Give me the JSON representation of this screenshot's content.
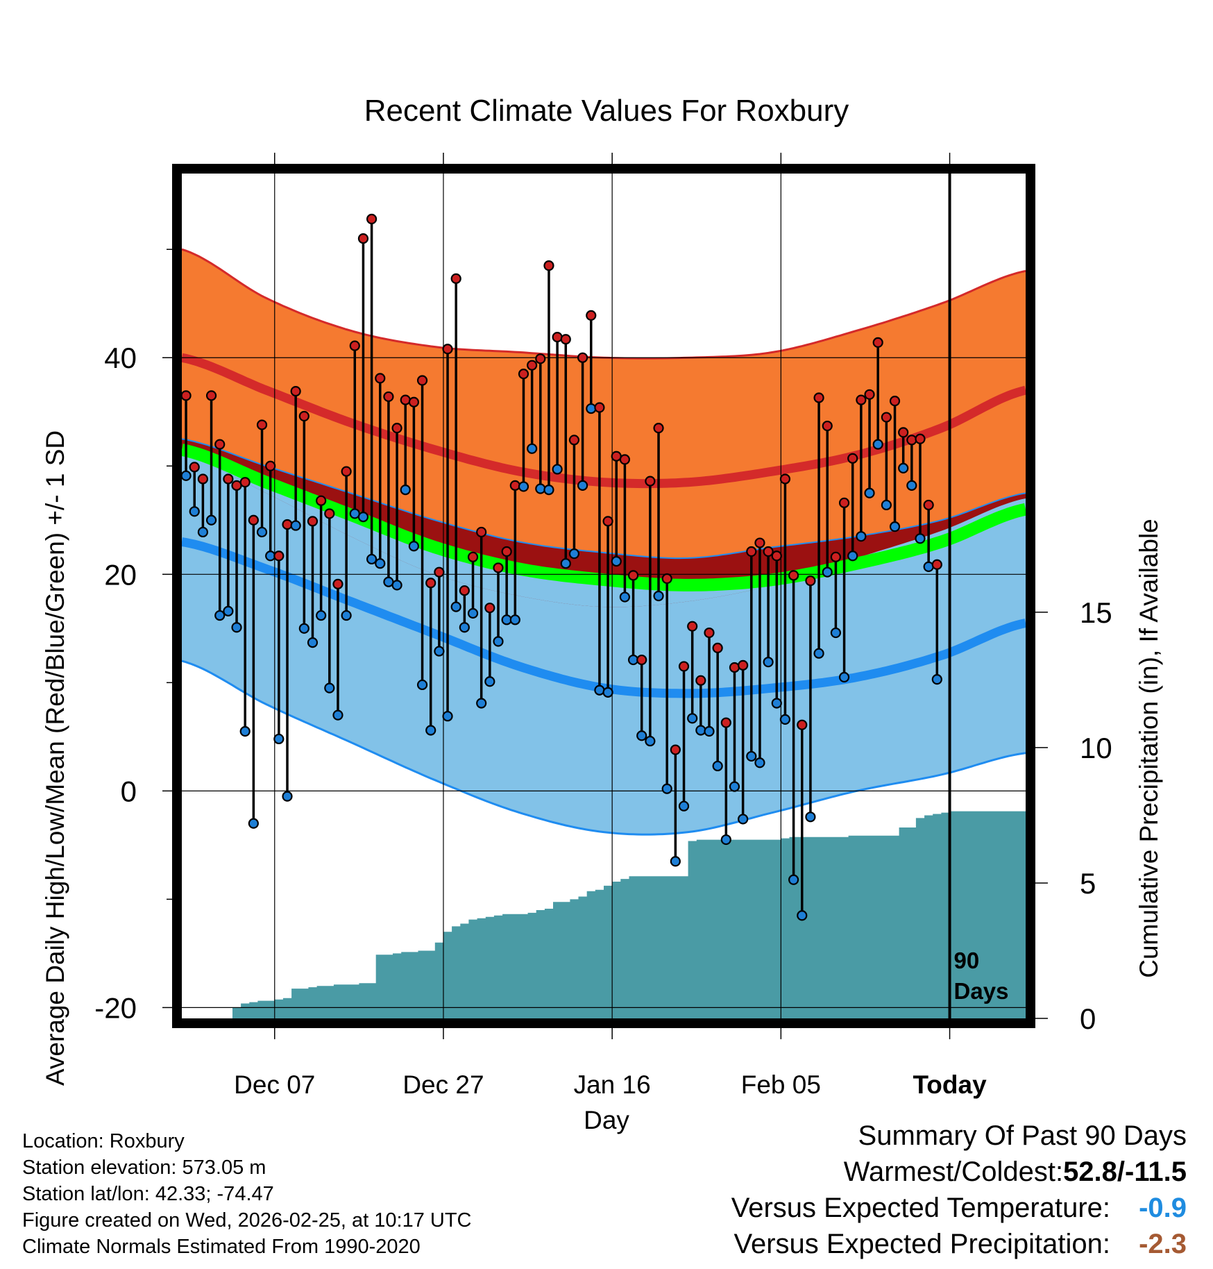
{
  "chart_data": {
    "type": "line",
    "title": "Recent Climate Values For Roxbury",
    "xlabel": "Day",
    "ylabel_left": "Average Daily High/Low/Mean (Red/Blue/Green) +/- 1 SD",
    "ylabel_right": "Cumulative Precipitation (in), If Available",
    "x_ticks": [
      "Dec 07",
      "Dec 27",
      "Jan 16",
      "Feb 05",
      "Today"
    ],
    "x_tick_days": [
      11,
      31,
      51,
      71,
      91
    ],
    "xlim": [
      0,
      100
    ],
    "ylim": [
      -21,
      57
    ],
    "y_ticks": [
      -20,
      0,
      20,
      40
    ],
    "precip_ticks": [
      0,
      5,
      10,
      15
    ],
    "precip_per_degree": 0.4,
    "today_day": 91,
    "today_label_line1": "90",
    "today_label_line2": "Days",
    "normals": {
      "days": [
        0,
        10,
        20,
        30,
        40,
        50,
        60,
        70,
        80,
        90,
        100
      ],
      "high_mean": [
        40,
        37,
        34,
        31.5,
        29.5,
        28.5,
        28.5,
        29.5,
        31,
        33.5,
        37
      ],
      "high_upper": [
        50,
        45.5,
        42.5,
        41,
        40.5,
        40,
        40,
        40.5,
        42.5,
        45,
        48
      ],
      "high_lower": [
        31,
        27.5,
        23.5,
        20,
        18,
        17,
        17.5,
        19,
        21.5,
        24,
        27
      ],
      "low_mean": [
        23,
        20.5,
        17.5,
        14.5,
        11.5,
        9.5,
        9,
        9.5,
        10.5,
        12.5,
        15.5
      ],
      "low_upper": [
        32.5,
        30,
        27.5,
        25,
        23,
        22,
        21.5,
        22.5,
        23.5,
        25,
        27.5
      ],
      "low_lower": [
        12,
        8,
        4.5,
        1,
        -2,
        -3.8,
        -3.8,
        -2,
        0,
        1.5,
        3.5
      ],
      "mean": [
        31.5,
        28.5,
        25.5,
        22.5,
        20.5,
        19.5,
        19,
        19.5,
        21,
        23,
        26
      ]
    },
    "series": [
      {
        "name": "Daily High",
        "color": "#cc2020",
        "values": [
          36.5,
          29.9,
          28.8,
          36.5,
          32,
          28.8,
          28.2,
          28.5,
          25,
          33.8,
          30,
          21.7,
          24.6,
          36.9,
          34.6,
          24.9,
          26.8,
          25.6,
          19.1,
          29.5,
          41.1,
          51,
          52.8,
          38.1,
          36.4,
          33.5,
          36.1,
          35.9,
          37.9,
          19.2,
          20.2,
          40.8,
          47.3,
          18.5,
          21.6,
          23.9,
          16.9,
          20.6,
          22.1,
          28.2,
          38.5,
          39.3,
          39.9,
          48.5,
          41.9,
          41.7,
          32.4,
          40,
          43.9,
          35.4,
          24.9,
          30.9,
          30.6,
          19.9,
          12.1,
          28.6,
          33.5,
          19.6,
          3.8,
          11.5,
          15.2,
          10.2,
          14.6,
          13.2,
          6.3,
          11.4,
          11.6,
          22.1,
          22.9,
          22.1,
          21.7,
          28.8,
          19.9,
          6.1,
          19.4,
          36.3,
          33.7,
          21.6,
          26.6,
          30.7,
          36.1,
          36.6,
          41.4,
          34.5,
          36,
          33.1,
          32.4,
          32.5,
          26.4,
          20.9
        ],
        "lows": [
          29.1,
          25.8,
          23.9,
          25,
          16.2,
          16.6,
          15.1,
          5.5,
          -3,
          23.9,
          21.7,
          4.8,
          -0.5,
          24.5,
          15,
          13.7,
          16.2,
          9.5,
          7,
          16.2,
          25.6,
          25.3,
          21.4,
          21,
          19.3,
          19,
          27.8,
          22.6,
          9.8,
          5.6,
          12.9,
          6.9,
          17,
          15.1,
          16.4,
          8.1,
          10.1,
          13.8,
          15.8,
          15.8,
          28.1,
          31.6,
          27.9,
          27.8,
          29.7,
          21,
          21.9,
          28.2,
          35.3,
          9.3,
          9.1,
          21.2,
          17.9,
          12.1,
          5.1,
          4.6,
          18,
          0.2,
          -6.5,
          -1.4,
          6.7,
          5.6,
          5.5,
          2.3,
          -4.5,
          0.4,
          -2.6,
          3.2,
          2.6,
          11.9,
          8.1,
          6.6,
          -8.2,
          -11.5,
          -2.4,
          12.7,
          20.2,
          14.6,
          10.5,
          21.7,
          23.5,
          27.5,
          32,
          26.4,
          24.4,
          29.8,
          28.2,
          23.3,
          20.7,
          10.3
        ]
      },
      {
        "name": "Cumulative Precipitation",
        "color": "#4a9ba5",
        "values": [
          0,
          0,
          0,
          0,
          0,
          0,
          0.4,
          0.55,
          0.6,
          0.65,
          0.65,
          0.7,
          0.75,
          1.1,
          1.1,
          1.15,
          1.2,
          1.2,
          1.25,
          1.25,
          1.25,
          1.3,
          1.3,
          2.35,
          2.35,
          2.4,
          2.45,
          2.45,
          2.5,
          2.5,
          2.8,
          3.2,
          3.4,
          3.5,
          3.65,
          3.7,
          3.75,
          3.8,
          3.85,
          3.85,
          3.85,
          3.9,
          4,
          4.05,
          4.3,
          4.3,
          4.4,
          4.5,
          4.7,
          4.75,
          4.9,
          5.05,
          5.15,
          5.25,
          5.25,
          5.25,
          5.25,
          5.25,
          5.25,
          5.25,
          6.55,
          6.6,
          6.6,
          6.6,
          6.6,
          6.6,
          6.6,
          6.6,
          6.6,
          6.6,
          6.6,
          6.65,
          6.7,
          6.7,
          6.7,
          6.7,
          6.7,
          6.7,
          6.7,
          6.75,
          6.75,
          6.75,
          6.75,
          6.75,
          6.75,
          7.05,
          7.05,
          7.4,
          7.5,
          7.55,
          7.6,
          7.65,
          7.65,
          7.65,
          7.65,
          7.65,
          7.65,
          7.65,
          7.65,
          7.65
        ]
      }
    ]
  },
  "info": {
    "location": "Location: Roxbury",
    "elevation": "Station elevation: 573.05 m",
    "latlon": "Station lat/lon: 42.33; -74.47",
    "created": "Figure created on Wed, 2026-02-25, at 10:17 UTC",
    "normals": "Climate Normals Estimated From 1990-2020"
  },
  "summary": {
    "title": "Summary Of Past 90 Days",
    "warmest_label": "Warmest/Coldest: ",
    "warmest_value": "52.8/-11.5",
    "temp_label": "Versus Expected Temperature:",
    "temp_value": "-0.9",
    "temp_color": "#1f8ce0",
    "precip_label": "Versus Expected Precipitation:",
    "precip_value": "-2.3",
    "precip_color": "#a55a33"
  },
  "colors": {
    "high_band": "#f57a30",
    "high_line": "#d42a2a",
    "low_band": "#82c2e8",
    "low_line": "#1f8cf0",
    "overlap_band": "#9b1111",
    "mean_line": "#00ff00",
    "precip_fill": "#4a9ba5",
    "high_dot": "#cc2020",
    "low_dot": "#1e7fd6"
  }
}
